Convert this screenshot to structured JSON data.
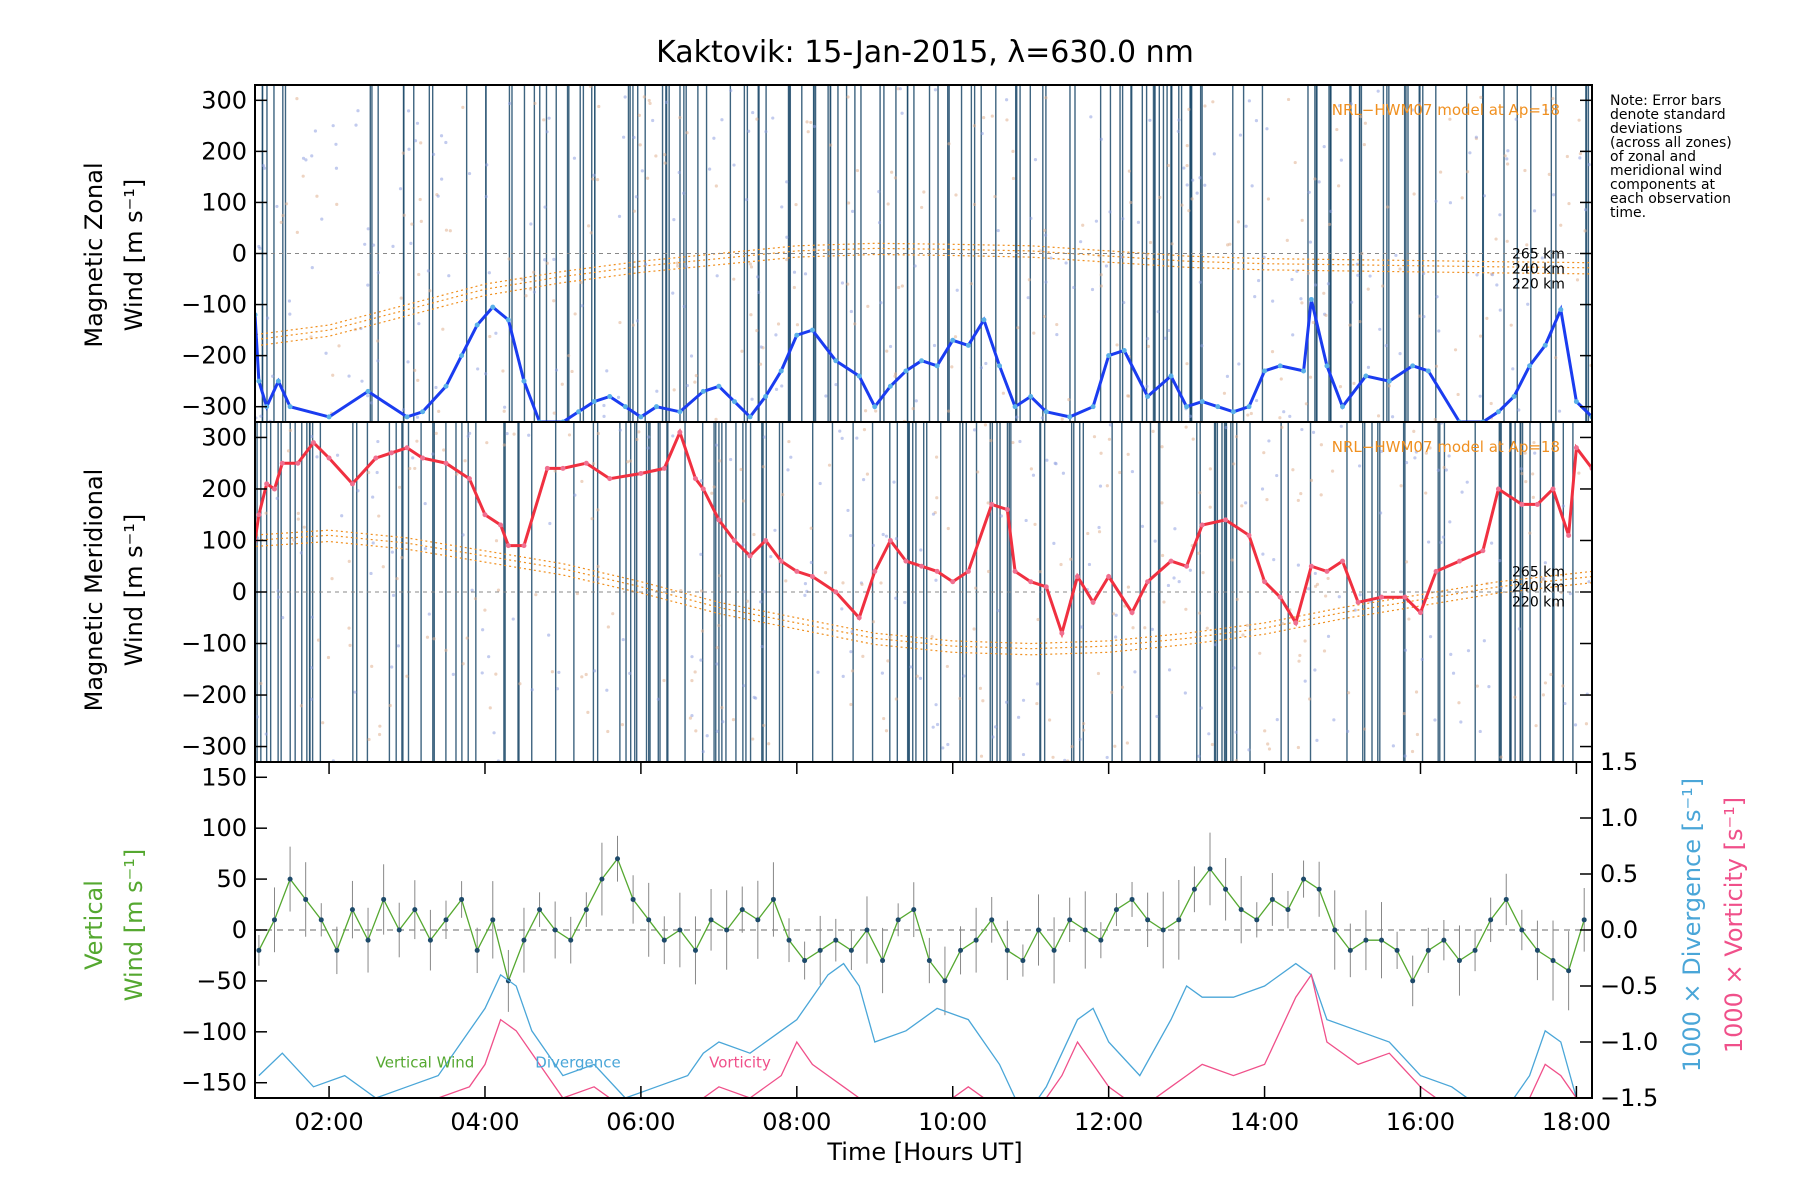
{
  "chart_data": [
    {
      "panel": "zonal",
      "type": "line",
      "title": "Kaktovik: 15-Jan-2015, λ=630.0 nm",
      "ylabel_line1": "Magnetic Zonal",
      "ylabel_line2": "Wind [m s⁻¹]",
      "ylim": [
        -330,
        330
      ],
      "xlim": [
        1.05,
        18.2
      ],
      "yticks": [
        300,
        200,
        100,
        0,
        -100,
        -200,
        -300
      ],
      "yticklabels": [
        "300",
        "200",
        "100",
        "0",
        "−100",
        "−200",
        "−300"
      ],
      "model_label": "NRL−HWM07 model at Ap=18",
      "model_altitudes": [
        "265 km",
        "240 km",
        "220 km"
      ],
      "model_curve": {
        "x": [
          1.0,
          2.0,
          3.0,
          4.0,
          5.0,
          6.0,
          7.0,
          8.0,
          9.0,
          10.0,
          11.0,
          12.0,
          13.0,
          14.0,
          15.0,
          16.0,
          17.0,
          18.2
        ],
        "y": [
          -170,
          -150,
          -110,
          -70,
          -45,
          -25,
          -10,
          5,
          10,
          8,
          5,
          -5,
          -15,
          -20,
          -22,
          -24,
          -26,
          -28
        ]
      },
      "color": "#1a3cf0",
      "series": [
        {
          "x": [
            1.05,
            1.1,
            1.2,
            1.35,
            1.5,
            2.0,
            2.5,
            3.0,
            3.2,
            3.5,
            3.7,
            3.9,
            4.1,
            4.3,
            4.5,
            4.7,
            5.0,
            5.2,
            5.4,
            5.6,
            5.8,
            6.0,
            6.2,
            6.5,
            6.8,
            7.0,
            7.2,
            7.4,
            7.6,
            7.8,
            8.0,
            8.2,
            8.5,
            8.8,
            9.0,
            9.2,
            9.4,
            9.6,
            9.8,
            10.0,
            10.2,
            10.4,
            10.6,
            10.8,
            11.0,
            11.2,
            11.5,
            11.8,
            12.0,
            12.2,
            12.5,
            12.8,
            13.0,
            13.2,
            13.4,
            13.6,
            13.8,
            14.0,
            14.2,
            14.5,
            14.6,
            14.8,
            15.0,
            15.3,
            15.6,
            15.9,
            16.1,
            16.5,
            16.8,
            17.0,
            17.2,
            17.4,
            17.6,
            17.8,
            18.0,
            18.2
          ],
          "y": [
            -120,
            -250,
            -300,
            -250,
            -300,
            -320,
            -270,
            -320,
            -310,
            -260,
            -200,
            -140,
            -105,
            -130,
            -250,
            -330,
            -330,
            -310,
            -290,
            -280,
            -300,
            -320,
            -300,
            -310,
            -270,
            -260,
            -290,
            -320,
            -280,
            -230,
            -160,
            -150,
            -210,
            -240,
            -300,
            -260,
            -230,
            -210,
            -220,
            -170,
            -180,
            -130,
            -220,
            -300,
            -280,
            -310,
            -320,
            -300,
            -200,
            -190,
            -280,
            -240,
            -300,
            -290,
            -300,
            -310,
            -300,
            -230,
            -220,
            -230,
            -90,
            -220,
            -300,
            -240,
            -250,
            -220,
            -230,
            -330,
            -330,
            -310,
            -280,
            -220,
            -180,
            -110,
            -290,
            -320
          ]
        }
      ]
    },
    {
      "panel": "meridional",
      "type": "line",
      "ylabel_line1": "Magnetic Meridional",
      "ylabel_line2": "Wind [m s⁻¹]",
      "ylim": [
        -330,
        330
      ],
      "xlim": [
        1.05,
        18.2
      ],
      "yticks": [
        300,
        200,
        100,
        0,
        -100,
        -200,
        -300
      ],
      "yticklabels": [
        "300",
        "200",
        "100",
        "0",
        "−100",
        "−200",
        "−300"
      ],
      "model_label": "NRL−HWM07 model at Ap=18",
      "model_altitudes": [
        "265 km",
        "240 km",
        "220 km"
      ],
      "model_curve": {
        "x": [
          1.0,
          2.0,
          3.0,
          4.0,
          5.0,
          6.0,
          7.0,
          8.0,
          9.0,
          10.0,
          11.0,
          12.0,
          13.0,
          14.0,
          15.0,
          16.0,
          17.0,
          18.2
        ],
        "y": [
          100,
          110,
          95,
          70,
          45,
          10,
          -30,
          -60,
          -90,
          -105,
          -110,
          -105,
          -90,
          -70,
          -40,
          -15,
          10,
          30
        ]
      },
      "color": "#f03040",
      "series": [
        {
          "x": [
            1.05,
            1.1,
            1.2,
            1.3,
            1.4,
            1.6,
            1.8,
            2.0,
            2.3,
            2.6,
            2.8,
            3.0,
            3.2,
            3.5,
            3.8,
            4.0,
            4.2,
            4.3,
            4.5,
            4.8,
            5.0,
            5.3,
            5.6,
            6.0,
            6.3,
            6.5,
            6.7,
            6.8,
            7.0,
            7.2,
            7.4,
            7.6,
            7.8,
            8.0,
            8.2,
            8.5,
            8.8,
            9.0,
            9.2,
            9.4,
            9.6,
            9.8,
            10.0,
            10.2,
            10.5,
            10.7,
            10.8,
            11.0,
            11.2,
            11.4,
            11.6,
            11.8,
            12.0,
            12.3,
            12.5,
            12.8,
            13.0,
            13.2,
            13.5,
            13.8,
            14.0,
            14.2,
            14.4,
            14.6,
            14.8,
            15.0,
            15.2,
            15.5,
            15.8,
            16.0,
            16.2,
            16.5,
            16.8,
            17.0,
            17.3,
            17.5,
            17.7,
            17.9,
            18.0,
            18.2
          ],
          "y": [
            100,
            150,
            210,
            200,
            250,
            250,
            290,
            260,
            210,
            260,
            270,
            280,
            260,
            250,
            220,
            150,
            130,
            90,
            90,
            240,
            240,
            250,
            220,
            230,
            240,
            310,
            220,
            200,
            140,
            100,
            70,
            100,
            60,
            40,
            30,
            0,
            -50,
            40,
            100,
            60,
            50,
            40,
            20,
            40,
            170,
            160,
            40,
            20,
            10,
            -80,
            30,
            -20,
            30,
            -40,
            20,
            60,
            50,
            130,
            140,
            110,
            20,
            -10,
            -60,
            50,
            40,
            60,
            -20,
            -10,
            -10,
            -40,
            40,
            60,
            80,
            200,
            170,
            170,
            200,
            110,
            280,
            240
          ]
        }
      ]
    },
    {
      "panel": "vertical",
      "type": "line",
      "xlabel": "Time [Hours UT]",
      "xticklabels": [
        "02:00",
        "04:00",
        "06:00",
        "08:00",
        "10:00",
        "12:00",
        "14:00",
        "16:00",
        "18:00"
      ],
      "xticks": [
        2,
        4,
        6,
        8,
        10,
        12,
        14,
        16,
        18
      ],
      "ylabel_line1": "Vertical",
      "ylabel_line2": "Wind [m s⁻¹]",
      "ylim": [
        -165,
        165
      ],
      "yticks": [
        150,
        100,
        50,
        0,
        -50,
        -100,
        -150
      ],
      "yticklabels": [
        "150",
        "100",
        "50",
        "0",
        "−50",
        "−100",
        "−150"
      ],
      "y2label": "1000 × Divergence [s⁻¹]",
      "y3label": "1000 × Vorticity [s⁻¹]",
      "y2lim": [
        -1.5,
        1.5
      ],
      "y2ticks": [
        1.5,
        1.0,
        0.5,
        0.0,
        -0.5,
        -1.0,
        -1.5
      ],
      "y2ticklabels": [
        "1.5",
        "1.0",
        "0.5",
        "0.0",
        "−0.5",
        "−1.0",
        "−1.5"
      ],
      "legend": [
        "Vertical Wind",
        "Divergence",
        "Vorticity"
      ],
      "note": [
        "Note: Error bars",
        "denote standard",
        "deviations",
        "(across all zones)",
        "of zonal and",
        "meridional wind",
        "components at",
        "each observation",
        "time."
      ],
      "series": [
        {
          "name": "Vertical Wind",
          "color": "#55a830",
          "x": [
            1.1,
            1.3,
            1.5,
            1.7,
            1.9,
            2.1,
            2.3,
            2.5,
            2.7,
            2.9,
            3.1,
            3.3,
            3.5,
            3.7,
            3.9,
            4.1,
            4.3,
            4.5,
            4.7,
            4.9,
            5.1,
            5.3,
            5.5,
            5.7,
            5.9,
            6.1,
            6.3,
            6.5,
            6.7,
            6.9,
            7.1,
            7.3,
            7.5,
            7.7,
            7.9,
            8.1,
            8.3,
            8.5,
            8.7,
            8.9,
            9.1,
            9.3,
            9.5,
            9.7,
            9.9,
            10.1,
            10.3,
            10.5,
            10.7,
            10.9,
            11.1,
            11.3,
            11.5,
            11.7,
            11.9,
            12.1,
            12.3,
            12.5,
            12.7,
            12.9,
            13.1,
            13.3,
            13.5,
            13.7,
            13.9,
            14.1,
            14.3,
            14.5,
            14.7,
            14.9,
            15.1,
            15.3,
            15.5,
            15.7,
            15.9,
            16.1,
            16.3,
            16.5,
            16.7,
            16.9,
            17.1,
            17.3,
            17.5,
            17.7,
            17.9,
            18.1
          ],
          "y": [
            -20,
            10,
            50,
            30,
            10,
            -20,
            20,
            -10,
            30,
            0,
            20,
            -10,
            10,
            30,
            -20,
            10,
            -50,
            -10,
            20,
            0,
            -10,
            20,
            50,
            70,
            30,
            10,
            -10,
            0,
            -20,
            10,
            0,
            20,
            10,
            30,
            -10,
            -30,
            -20,
            -10,
            -20,
            0,
            -30,
            10,
            20,
            -30,
            -50,
            -20,
            -10,
            10,
            -20,
            -30,
            0,
            -20,
            10,
            0,
            -10,
            20,
            30,
            10,
            0,
            10,
            40,
            60,
            40,
            20,
            10,
            30,
            20,
            50,
            40,
            0,
            -20,
            -10,
            -10,
            -20,
            -50,
            -20,
            -10,
            -30,
            -20,
            10,
            30,
            0,
            -20,
            -30,
            -40,
            10
          ]
        },
        {
          "name": "Divergence",
          "color": "#4aa6d8",
          "x": [
            1.1,
            1.4,
            1.8,
            2.2,
            2.6,
            3.0,
            3.4,
            3.8,
            4.0,
            4.2,
            4.4,
            4.6,
            5.0,
            5.4,
            5.8,
            6.2,
            6.6,
            6.8,
            7.0,
            7.4,
            7.8,
            8.0,
            8.2,
            8.4,
            8.6,
            8.8,
            9.0,
            9.4,
            9.8,
            10.2,
            10.6,
            10.8,
            11.0,
            11.2,
            11.4,
            11.6,
            11.8,
            12.0,
            12.4,
            12.8,
            13.0,
            13.2,
            13.6,
            14.0,
            14.4,
            14.6,
            14.8,
            15.2,
            15.6,
            16.0,
            16.4,
            16.8,
            17.2,
            17.4,
            17.6,
            17.8,
            18.0,
            18.2
          ],
          "y": [
            -1.3,
            -1.1,
            -1.4,
            -1.3,
            -1.5,
            -1.4,
            -1.3,
            -0.9,
            -0.7,
            -0.4,
            -0.5,
            -0.9,
            -1.3,
            -1.2,
            -1.5,
            -1.4,
            -1.3,
            -1.1,
            -1.0,
            -1.1,
            -0.9,
            -0.8,
            -0.6,
            -0.4,
            -0.3,
            -0.5,
            -1.0,
            -0.9,
            -0.7,
            -0.8,
            -1.2,
            -1.5,
            -1.6,
            -1.4,
            -1.1,
            -0.8,
            -0.7,
            -1.0,
            -1.3,
            -0.8,
            -0.5,
            -0.6,
            -0.6,
            -0.5,
            -0.3,
            -0.4,
            -0.8,
            -0.9,
            -1.0,
            -1.3,
            -1.4,
            -1.6,
            -1.5,
            -1.3,
            -0.9,
            -1.0,
            -1.5,
            -1.6
          ]
        },
        {
          "name": "Vorticity",
          "color": "#f0508a",
          "x": [
            1.1,
            1.4,
            1.8,
            2.2,
            2.6,
            3.0,
            3.4,
            3.8,
            4.0,
            4.2,
            4.4,
            4.6,
            5.0,
            5.4,
            5.8,
            6.2,
            6.6,
            6.8,
            7.0,
            7.4,
            7.8,
            8.0,
            8.2,
            8.4,
            8.6,
            8.8,
            9.0,
            9.4,
            9.8,
            10.2,
            10.6,
            10.8,
            11.0,
            11.2,
            11.4,
            11.6,
            11.8,
            12.0,
            12.4,
            12.8,
            13.0,
            13.2,
            13.6,
            14.0,
            14.4,
            14.6,
            14.8,
            15.2,
            15.6,
            16.0,
            16.4,
            16.8,
            17.2,
            17.4,
            17.6,
            17.8,
            18.0,
            18.2
          ],
          "y": [
            -1.6,
            -1.5,
            -1.6,
            -1.6,
            -1.6,
            -1.6,
            -1.5,
            -1.4,
            -1.2,
            -0.8,
            -0.9,
            -1.1,
            -1.5,
            -1.4,
            -1.6,
            -1.6,
            -1.5,
            -1.5,
            -1.4,
            -1.5,
            -1.3,
            -1.0,
            -1.2,
            -1.3,
            -1.4,
            -1.5,
            -1.6,
            -1.5,
            -1.6,
            -1.4,
            -1.6,
            -1.6,
            -1.6,
            -1.5,
            -1.3,
            -1.0,
            -1.2,
            -1.4,
            -1.6,
            -1.4,
            -1.3,
            -1.2,
            -1.3,
            -1.2,
            -0.6,
            -0.4,
            -1.0,
            -1.2,
            -1.1,
            -1.4,
            -1.6,
            -1.5,
            -1.6,
            -1.5,
            -1.2,
            -1.3,
            -1.5,
            -1.6
          ]
        }
      ]
    }
  ]
}
